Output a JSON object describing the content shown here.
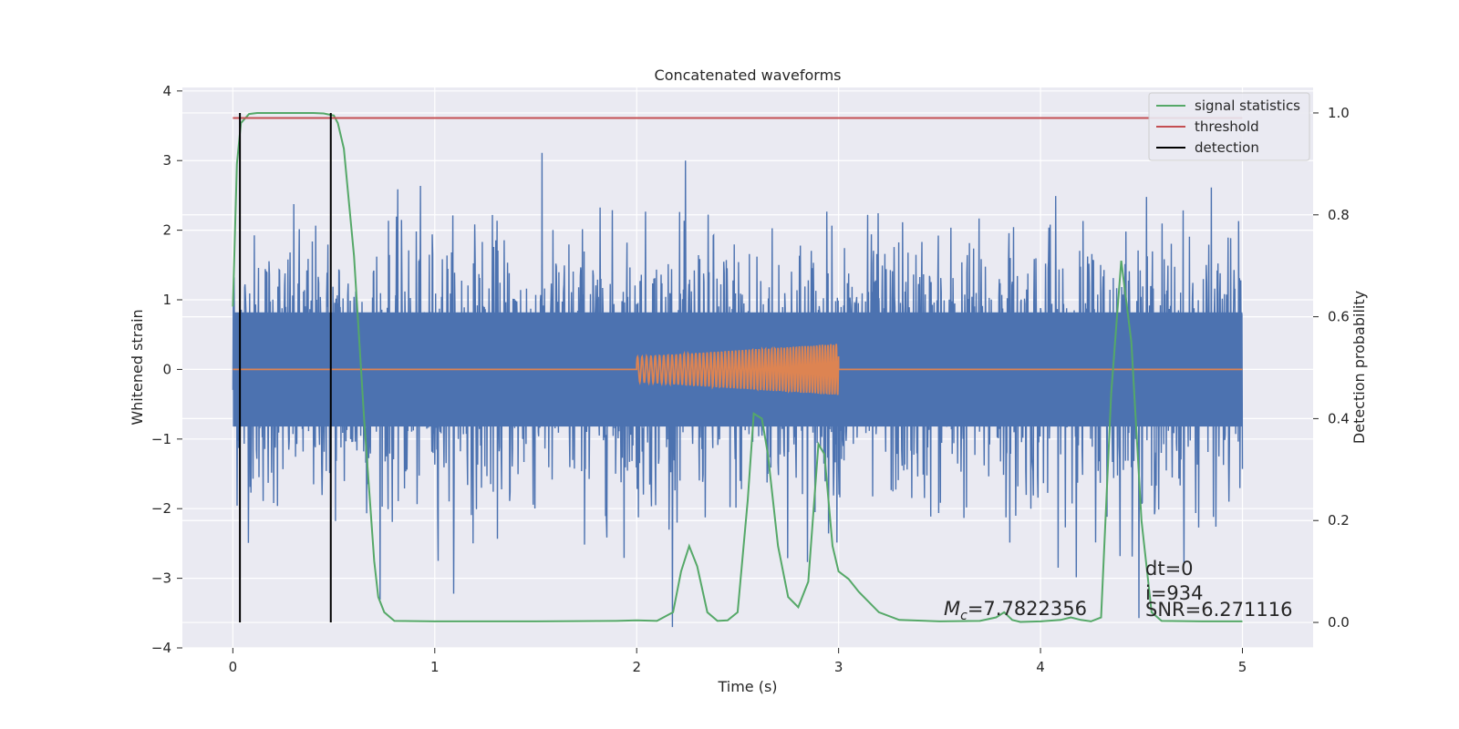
{
  "chart_data": {
    "type": "line",
    "title": "Concatenated waveforms",
    "xlabel": "Time (s)",
    "ylabel": "Whitened strain",
    "y2label": "Detection probability",
    "xlim": [
      -0.25,
      5.35
    ],
    "ylim": [
      -4,
      4.05
    ],
    "y2lim": [
      -0.05,
      1.05
    ],
    "xticks": [
      "0",
      "1",
      "2",
      "3",
      "4",
      "5"
    ],
    "yticks": [
      "−4",
      "−3",
      "−2",
      "−1",
      "0",
      "1",
      "2",
      "3",
      "4"
    ],
    "y2ticks": [
      "0.0",
      "0.2",
      "0.4",
      "0.6",
      "0.8",
      "1.0"
    ],
    "grid": true,
    "legend_position": "top-right",
    "colors": {
      "strain": "#4c72b0",
      "injection": "#dd8452",
      "signal_statistics": "#55a868",
      "threshold": "#c44e52",
      "detection": "#000000",
      "background": "#eaeaf2",
      "grid": "#ffffff"
    },
    "series": [
      {
        "name": "signal statistics",
        "axis": "right",
        "x": [
          0,
          0.02,
          0.04,
          0.08,
          0.12,
          0.2,
          0.3,
          0.4,
          0.45,
          0.5,
          0.52,
          0.55,
          0.6,
          0.65,
          0.7,
          0.72,
          0.75,
          0.8,
          1.0,
          1.5,
          1.9,
          2.0,
          2.1,
          2.18,
          2.22,
          2.26,
          2.3,
          2.35,
          2.4,
          2.45,
          2.5,
          2.55,
          2.58,
          2.62,
          2.65,
          2.7,
          2.75,
          2.8,
          2.85,
          2.9,
          2.93,
          2.97,
          3.0,
          3.05,
          3.1,
          3.2,
          3.3,
          3.5,
          3.7,
          3.78,
          3.82,
          3.86,
          3.9,
          4.0,
          4.1,
          4.15,
          4.2,
          4.25,
          4.3,
          4.35,
          4.4,
          4.45,
          4.5,
          4.55,
          4.6,
          4.8,
          5.0
        ],
        "y": [
          0.62,
          0.9,
          0.98,
          0.998,
          1.0,
          1.0,
          1.0,
          1.0,
          0.999,
          0.995,
          0.98,
          0.93,
          0.72,
          0.4,
          0.12,
          0.05,
          0.02,
          0.003,
          0.002,
          0.002,
          0.003,
          0.004,
          0.003,
          0.02,
          0.1,
          0.15,
          0.11,
          0.02,
          0.003,
          0.004,
          0.02,
          0.24,
          0.41,
          0.4,
          0.33,
          0.15,
          0.05,
          0.03,
          0.08,
          0.35,
          0.33,
          0.15,
          0.1,
          0.085,
          0.06,
          0.02,
          0.005,
          0.002,
          0.003,
          0.01,
          0.02,
          0.005,
          0.001,
          0.002,
          0.005,
          0.01,
          0.005,
          0.002,
          0.01,
          0.45,
          0.71,
          0.55,
          0.2,
          0.02,
          0.003,
          0.002,
          0.002
        ]
      },
      {
        "name": "threshold",
        "axis": "right",
        "x": [
          0,
          5
        ],
        "y": [
          0.99,
          0.99
        ]
      },
      {
        "name": "detection",
        "axis": "right",
        "x": [
          0.035,
          0.485
        ],
        "y": [
          1.0,
          1.0
        ]
      },
      {
        "name": "",
        "axis": "left",
        "kind": "noisy whitened strain",
        "x_range": [
          0,
          5
        ],
        "amplitude_band": [
          -3.7,
          3.7
        ]
      },
      {
        "name": "",
        "axis": "left",
        "kind": "injected chirp",
        "x_range": [
          2,
          3
        ],
        "envelope": [
          0.18,
          0.37
        ]
      }
    ],
    "annotations": {
      "mc_symbol": "M",
      "mc_subscript": "c",
      "mc_value": "=7.7822356",
      "dt": "dt=0",
      "i": "i=934",
      "snr": "SNR=6.271116"
    }
  }
}
